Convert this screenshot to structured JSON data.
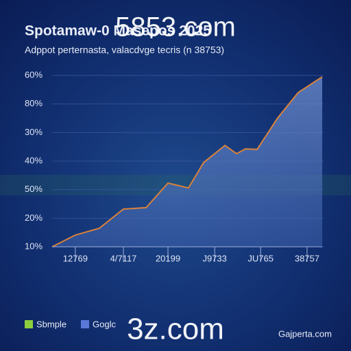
{
  "chart_data": {
    "type": "area",
    "title": "Spotamaw-0 Masepos 2025",
    "subtitle": "Adppot perternasta, valacdvge tecris (n 38753)",
    "watermarks": [
      "5853.com",
      "3z.com"
    ],
    "footer": "Gajperta.com",
    "y_labels": [
      "10%",
      "50%",
      "20%",
      "40%",
      "30%",
      "80%",
      "60%"
    ],
    "y_labels_order": [
      "10%",
      "20%",
      "50%",
      "40%",
      "30%",
      "80%",
      "60%"
    ],
    "ylim": [
      0,
      6
    ],
    "xlim": [
      0,
      100
    ],
    "xticks": [
      {
        "value": 8.6,
        "label": "12769"
      },
      {
        "value": 26.4,
        "label": "4/7117"
      },
      {
        "value": 42.9,
        "label": "20199"
      },
      {
        "value": 60.2,
        "label": "J9733"
      },
      {
        "value": 77.2,
        "label": "JU765"
      },
      {
        "value": 94.4,
        "label": "38757"
      }
    ],
    "x": [
      0,
      8.6,
      17.5,
      26.4,
      34.8,
      42.9,
      50.5,
      56.1,
      64,
      68.3,
      71.6,
      75.9,
      83.5,
      91.1,
      100
    ],
    "series": [
      {
        "name": "Sbmple",
        "color": "#d9823a",
        "values": [
          0,
          0.41,
          0.65,
          1.32,
          1.37,
          2.23,
          2.06,
          2.95,
          3.55,
          3.26,
          3.43,
          3.41,
          4.51,
          5.4,
          5.95
        ]
      }
    ],
    "legend": [
      {
        "name": "Sbmple",
        "color": "#8ccf3e"
      },
      {
        "name": "Goglc",
        "color": "#5a78d8"
      }
    ],
    "grid": true
  }
}
